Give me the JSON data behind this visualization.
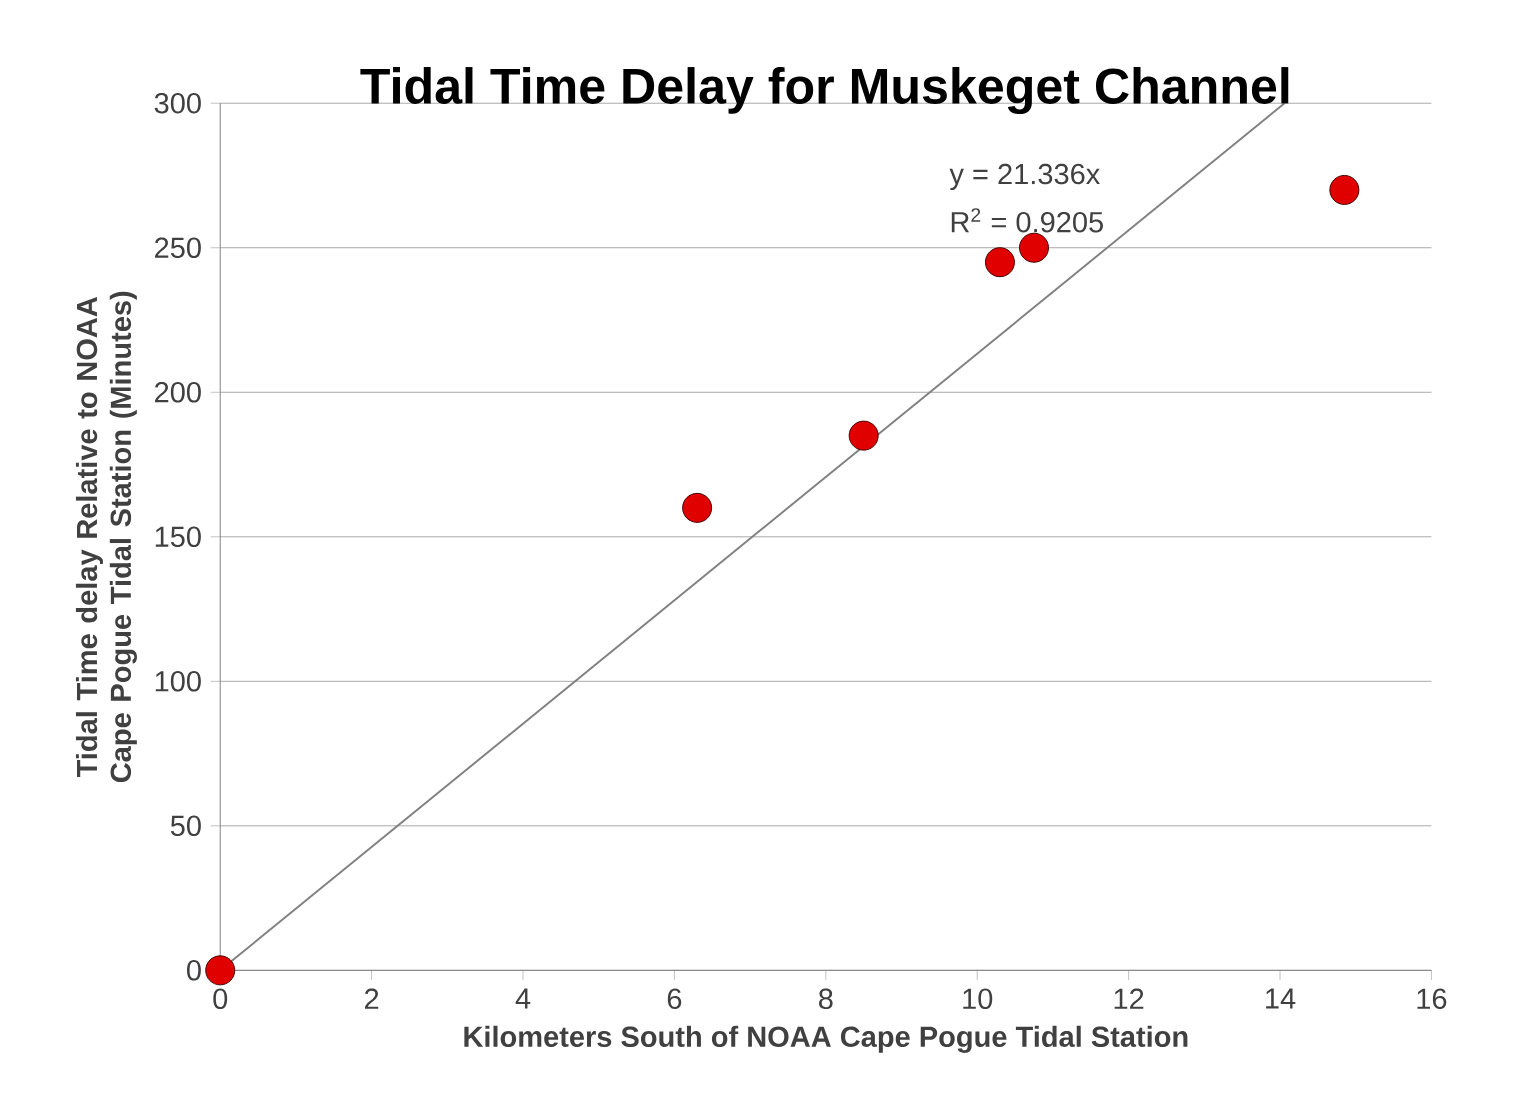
{
  "chart_data": {
    "type": "scatter",
    "title": "Tidal Time Delay for Muskeget Channel",
    "xlabel": "Kilometers South of NOAA Cape Pogue Tidal Station",
    "ylabel": "Tidal Time delay Relative to NOAA Cape Pogue Tidal Station (Minutes)",
    "xlim": [
      0,
      16
    ],
    "xticks": [
      0,
      2,
      4,
      6,
      8,
      10,
      12,
      14,
      16
    ],
    "ylim": [
      0,
      300
    ],
    "yticks": [
      0,
      50,
      100,
      150,
      200,
      250,
      300
    ],
    "grid": "y",
    "annotations": [
      "y = 21.336x",
      "R$^{2}$ = 0.9205"
    ],
    "series": [
      {
        "color": "#e00000",
        "marker": "circle",
        "x": [
          0,
          6.3,
          8.5,
          10.3,
          10.75,
          14.85
        ],
        "values": [
          0,
          160,
          185,
          245,
          250,
          270
        ]
      },
      {
        "type": "line",
        "color": "#808080",
        "marker": "none",
        "line_style": "solid",
        "x": [
          0,
          14.06
        ],
        "values": [
          0,
          300
        ]
      }
    ]
  }
}
